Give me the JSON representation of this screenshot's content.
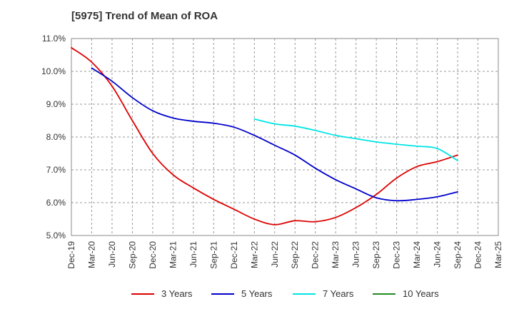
{
  "chart_data": {
    "type": "line",
    "title": "[5975]  Trend of Mean of ROA",
    "xlabel": "",
    "ylabel": "",
    "ylim": [
      5.0,
      11.0
    ],
    "y_ticks": [
      "5.0%",
      "6.0%",
      "7.0%",
      "8.0%",
      "9.0%",
      "10.0%",
      "11.0%"
    ],
    "y_tick_values": [
      5.0,
      6.0,
      7.0,
      8.0,
      9.0,
      10.0,
      11.0
    ],
    "categories": [
      "Dec-19",
      "Mar-20",
      "Jun-20",
      "Sep-20",
      "Dec-20",
      "Mar-21",
      "Jun-21",
      "Sep-21",
      "Dec-21",
      "Mar-22",
      "Jun-22",
      "Sep-22",
      "Dec-22",
      "Mar-23",
      "Jun-23",
      "Sep-23",
      "Dec-23",
      "Mar-24",
      "Jun-24",
      "Sep-24",
      "Dec-24",
      "Mar-25"
    ],
    "grid": true,
    "legend_position": "bottom",
    "series": [
      {
        "name": "3 Years",
        "color": "#dd0000",
        "values": [
          10.72,
          10.28,
          9.55,
          8.5,
          7.5,
          6.85,
          6.45,
          6.1,
          5.8,
          5.5,
          5.33,
          5.45,
          5.42,
          5.55,
          5.85,
          6.25,
          6.75,
          7.1,
          7.25,
          7.45,
          null,
          null
        ]
      },
      {
        "name": "5 Years",
        "color": "#0000cc",
        "values": [
          null,
          10.1,
          9.7,
          9.2,
          8.8,
          8.58,
          8.48,
          8.42,
          8.3,
          8.05,
          7.75,
          7.45,
          7.05,
          6.7,
          6.42,
          6.15,
          6.06,
          6.1,
          6.18,
          6.33,
          null,
          null
        ]
      },
      {
        "name": "7 Years",
        "color": "#00e5e5",
        "values": [
          null,
          null,
          null,
          null,
          null,
          null,
          null,
          null,
          null,
          8.55,
          8.4,
          8.33,
          8.2,
          8.05,
          7.95,
          7.85,
          7.78,
          7.72,
          7.65,
          7.28,
          null,
          null
        ]
      },
      {
        "name": "10 Years",
        "color": "#228b22",
        "values": [
          null,
          null,
          null,
          null,
          null,
          null,
          null,
          null,
          null,
          null,
          null,
          null,
          null,
          null,
          null,
          null,
          null,
          null,
          null,
          null,
          null,
          null
        ]
      }
    ]
  }
}
